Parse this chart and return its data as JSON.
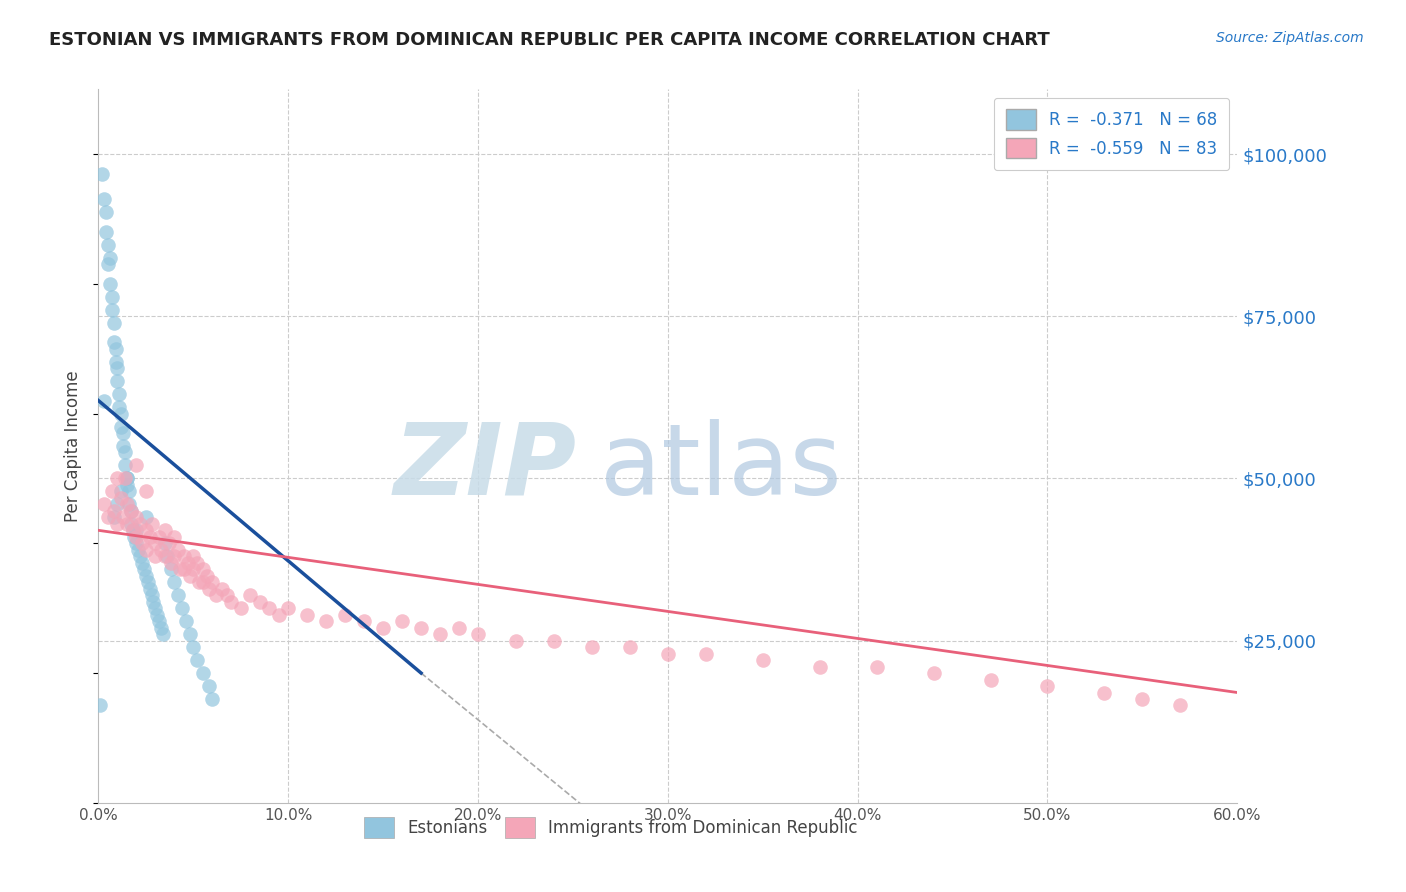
{
  "title": "ESTONIAN VS IMMIGRANTS FROM DOMINICAN REPUBLIC PER CAPITA INCOME CORRELATION CHART",
  "source": "Source: ZipAtlas.com",
  "ylabel": "Per Capita Income",
  "ytick_values": [
    25000,
    50000,
    75000,
    100000
  ],
  "xmin": 0.0,
  "xmax": 0.6,
  "ymin": 0,
  "ymax": 110000,
  "color_blue": "#92c5de",
  "color_pink": "#f4a6b8",
  "line_blue": "#1a4f9c",
  "line_pink": "#e8607a",
  "zip_color": "#d8e8f0",
  "atlas_color": "#b8cfe8",
  "blue_x": [
    0.002,
    0.003,
    0.004,
    0.004,
    0.005,
    0.005,
    0.006,
    0.006,
    0.007,
    0.007,
    0.008,
    0.008,
    0.009,
    0.009,
    0.01,
    0.01,
    0.011,
    0.011,
    0.012,
    0.012,
    0.013,
    0.013,
    0.014,
    0.014,
    0.015,
    0.015,
    0.016,
    0.016,
    0.017,
    0.017,
    0.018,
    0.019,
    0.02,
    0.021,
    0.022,
    0.023,
    0.024,
    0.025,
    0.026,
    0.027,
    0.028,
    0.029,
    0.03,
    0.031,
    0.032,
    0.033,
    0.034,
    0.035,
    0.036,
    0.038,
    0.04,
    0.042,
    0.044,
    0.046,
    0.048,
    0.05,
    0.052,
    0.055,
    0.058,
    0.06,
    0.001,
    0.003,
    0.008,
    0.01,
    0.012,
    0.015,
    0.02,
    0.025
  ],
  "blue_y": [
    97000,
    93000,
    91000,
    88000,
    86000,
    83000,
    84000,
    80000,
    78000,
    76000,
    74000,
    71000,
    70000,
    68000,
    67000,
    65000,
    63000,
    61000,
    60000,
    58000,
    57000,
    55000,
    54000,
    52000,
    50000,
    49000,
    48000,
    46000,
    45000,
    43000,
    42000,
    41000,
    40000,
    39000,
    38000,
    37000,
    36000,
    35000,
    34000,
    33000,
    32000,
    31000,
    30000,
    29000,
    28000,
    27000,
    26000,
    40000,
    38000,
    36000,
    34000,
    32000,
    30000,
    28000,
    26000,
    24000,
    22000,
    20000,
    18000,
    16000,
    15000,
    62000,
    44000,
    46000,
    48000,
    50000,
    42000,
    44000
  ],
  "pink_x": [
    0.003,
    0.005,
    0.007,
    0.008,
    0.01,
    0.01,
    0.012,
    0.013,
    0.015,
    0.015,
    0.017,
    0.018,
    0.02,
    0.02,
    0.022,
    0.023,
    0.025,
    0.025,
    0.027,
    0.028,
    0.03,
    0.03,
    0.032,
    0.033,
    0.035,
    0.035,
    0.037,
    0.038,
    0.04,
    0.04,
    0.042,
    0.043,
    0.045,
    0.045,
    0.047,
    0.048,
    0.05,
    0.05,
    0.052,
    0.053,
    0.055,
    0.055,
    0.057,
    0.058,
    0.06,
    0.062,
    0.065,
    0.068,
    0.07,
    0.075,
    0.08,
    0.085,
    0.09,
    0.095,
    0.1,
    0.11,
    0.12,
    0.13,
    0.14,
    0.15,
    0.16,
    0.17,
    0.18,
    0.19,
    0.2,
    0.22,
    0.24,
    0.26,
    0.28,
    0.3,
    0.32,
    0.35,
    0.38,
    0.41,
    0.44,
    0.47,
    0.5,
    0.53,
    0.55,
    0.57,
    0.014,
    0.02,
    0.025
  ],
  "pink_y": [
    46000,
    44000,
    48000,
    45000,
    43000,
    50000,
    47000,
    44000,
    46000,
    43000,
    45000,
    42000,
    44000,
    41000,
    43000,
    40000,
    42000,
    39000,
    41000,
    43000,
    40000,
    38000,
    41000,
    39000,
    42000,
    38000,
    40000,
    37000,
    41000,
    38000,
    39000,
    36000,
    38000,
    36000,
    37000,
    35000,
    38000,
    36000,
    37000,
    34000,
    36000,
    34000,
    35000,
    33000,
    34000,
    32000,
    33000,
    32000,
    31000,
    30000,
    32000,
    31000,
    30000,
    29000,
    30000,
    29000,
    28000,
    29000,
    28000,
    27000,
    28000,
    27000,
    26000,
    27000,
    26000,
    25000,
    25000,
    24000,
    24000,
    23000,
    23000,
    22000,
    21000,
    21000,
    20000,
    19000,
    18000,
    17000,
    16000,
    15000,
    50000,
    52000,
    48000
  ]
}
